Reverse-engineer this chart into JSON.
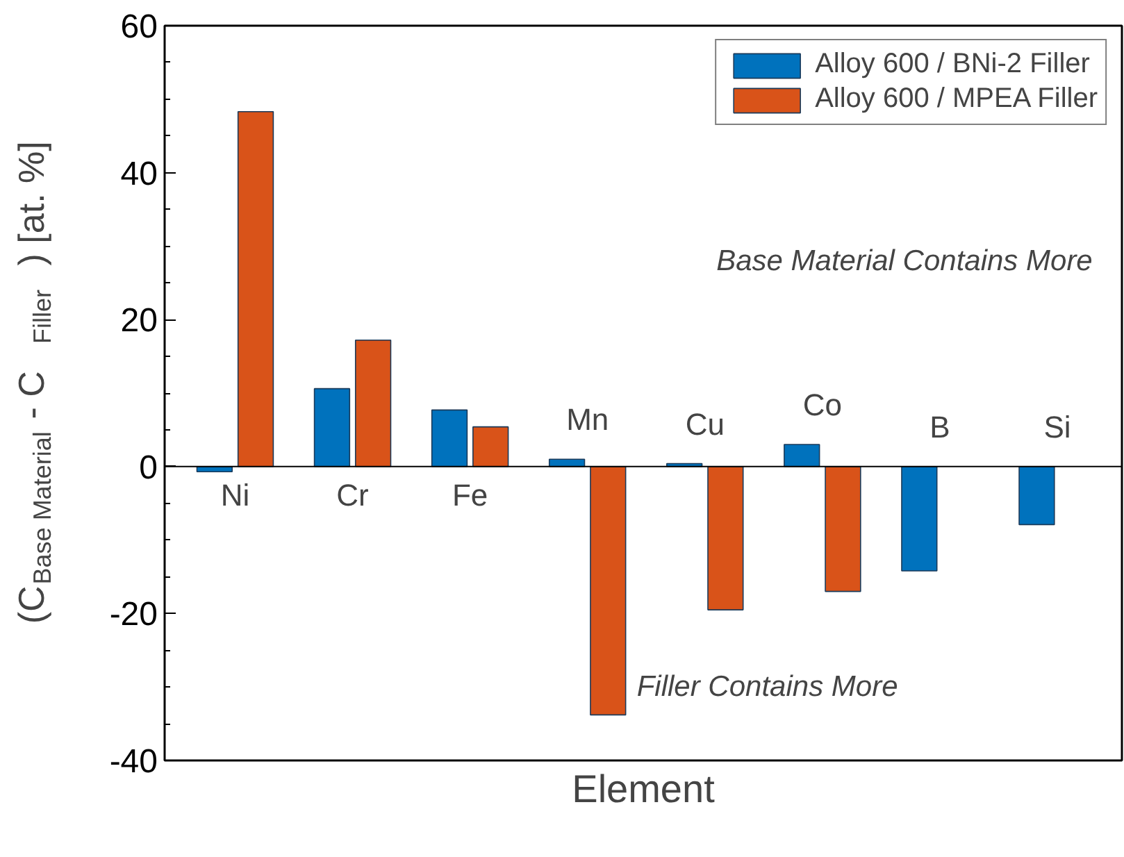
{
  "chart_data": {
    "type": "bar",
    "xlabel": "Element",
    "ylabel": "(C$_{Base Material}$ - C$_{Filler}$) [at. %]",
    "categories": [
      "Ni",
      "Cr",
      "Fe",
      "Mn",
      "Cu",
      "Co",
      "B",
      "Si"
    ],
    "series": [
      {
        "name": "Alloy 600 / BNi-2 Filler",
        "color": "#0072bd",
        "values": [
          -0.7,
          10.6,
          7.7,
          1.0,
          0.4,
          3.0,
          -14.2,
          -7.9
        ]
      },
      {
        "name": "Alloy 600 / MPEA Filler",
        "color": "#d95319",
        "values": [
          48.3,
          17.2,
          5.4,
          -33.8,
          -19.5,
          -17.0,
          null,
          null
        ]
      }
    ],
    "ylim": [
      -40,
      60
    ],
    "yticks": [
      -40,
      -20,
      0,
      20,
      40,
      60
    ],
    "tick_labels": "y",
    "legend": "top right",
    "grid": false,
    "annotations": [
      "Base Material Contains More",
      "Filler Contains More"
    ]
  }
}
